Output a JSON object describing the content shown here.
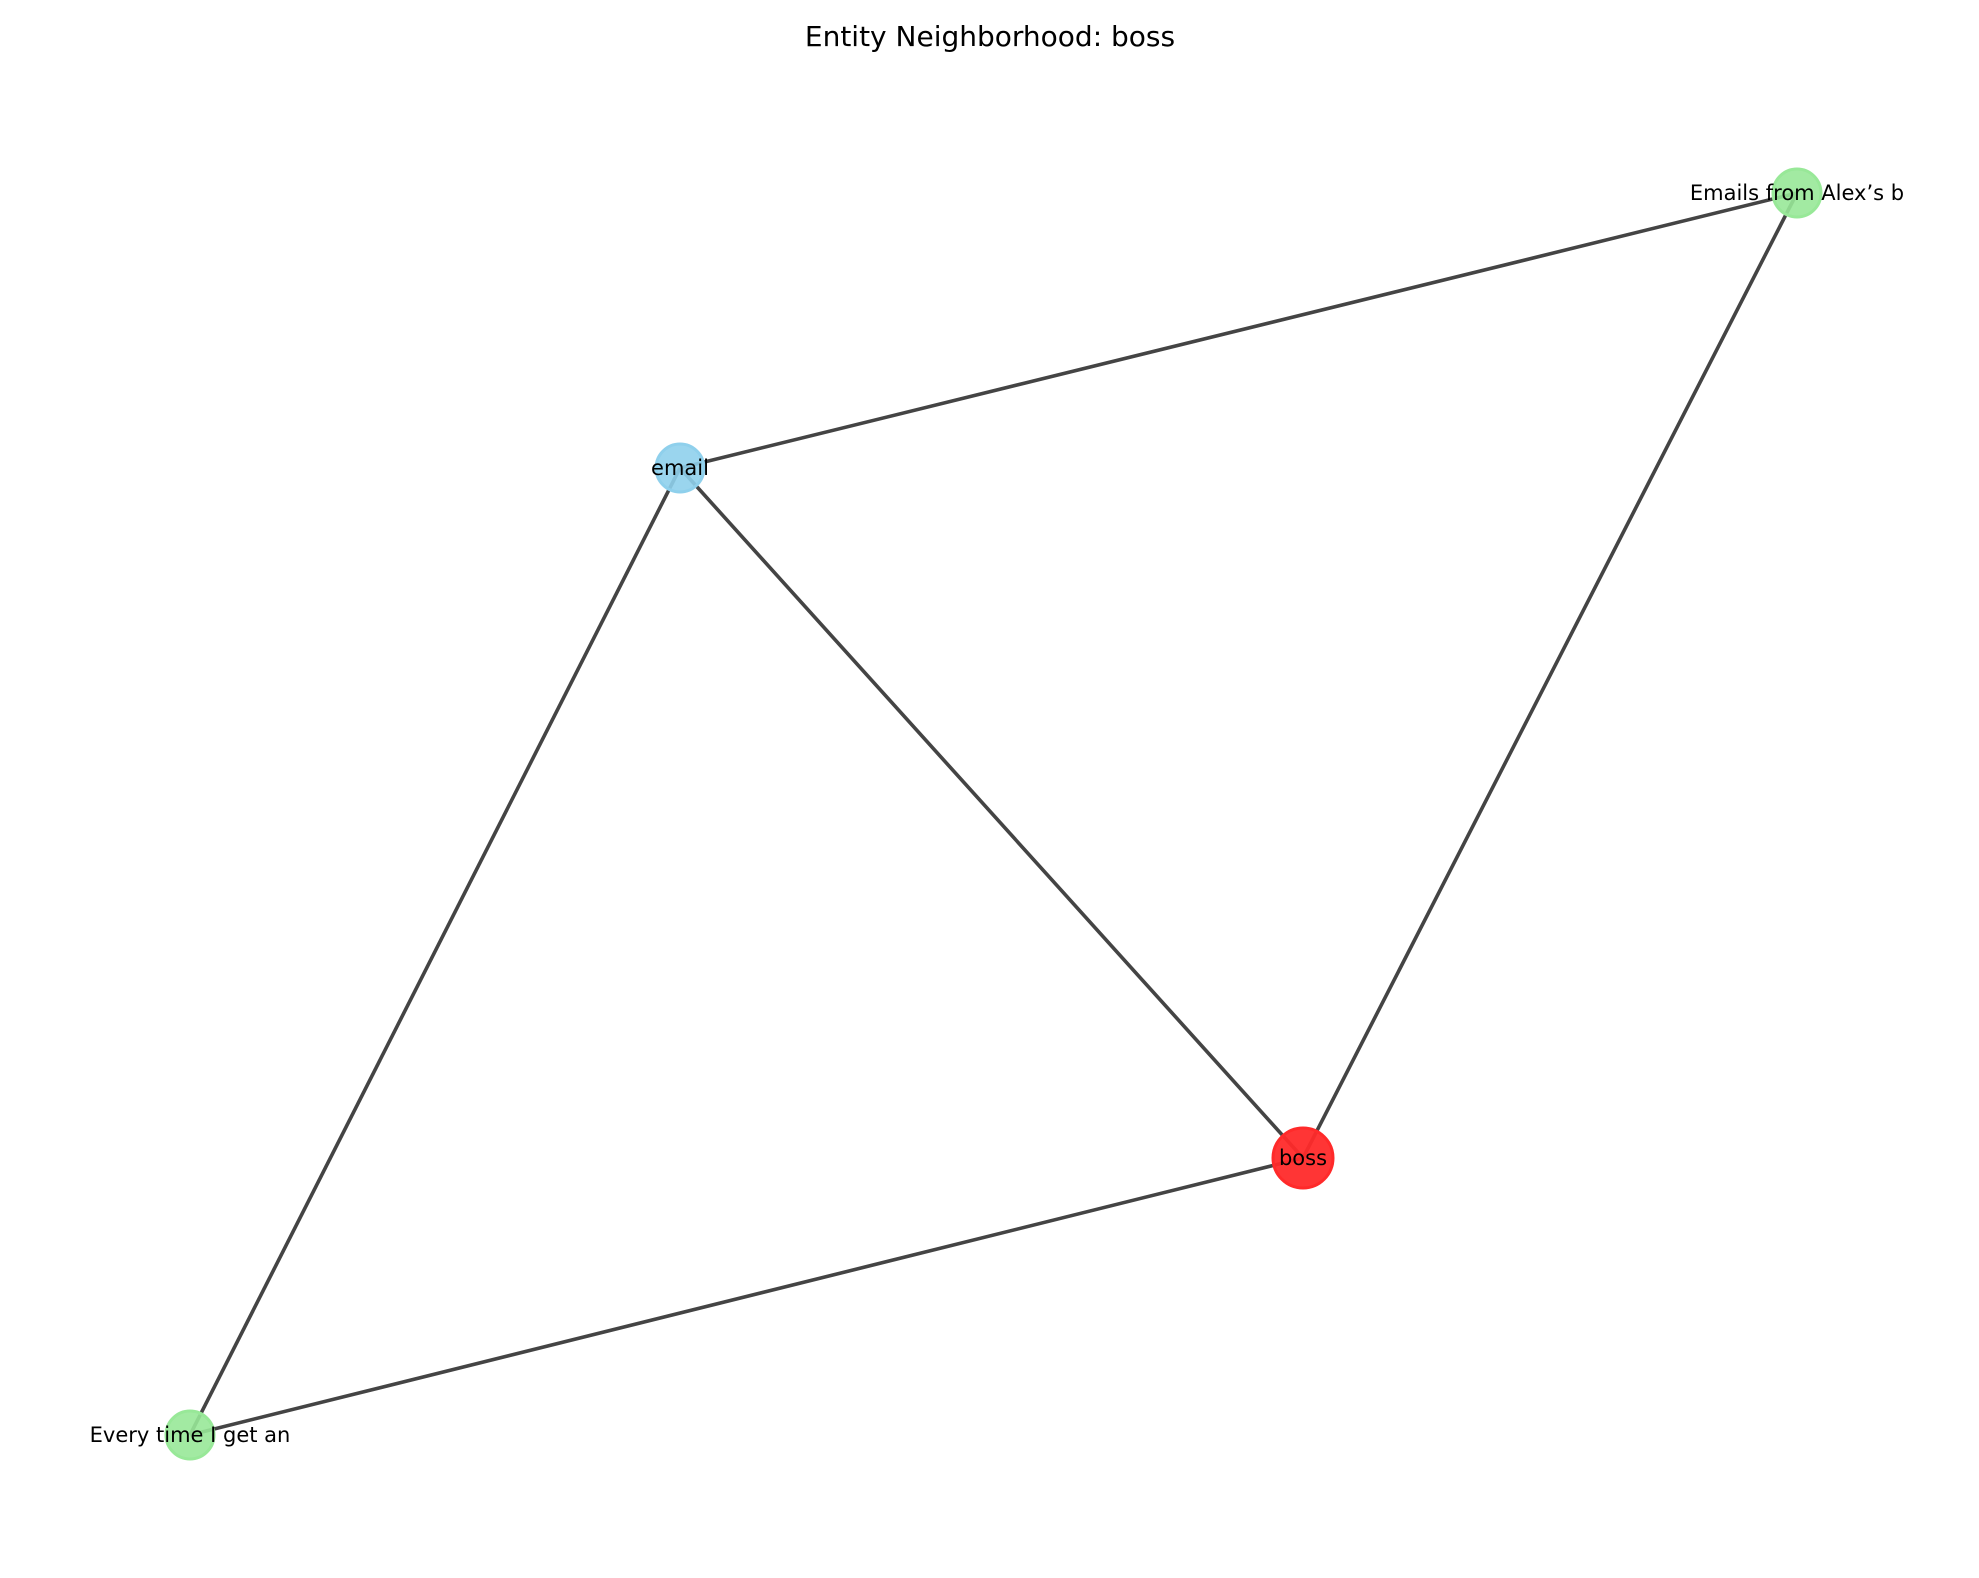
{
  "title": "Entity Neighborhood: boss",
  "colors": {
    "center": "#ff2a2a",
    "entity": "#8fd0ec",
    "memory": "#98e898",
    "edge": "#444444"
  },
  "nodes": [
    {
      "id": "boss",
      "label": "boss",
      "kind": "center"
    },
    {
      "id": "email",
      "label": "email",
      "kind": "entity"
    },
    {
      "id": "mem1",
      "label": "Emails from Alex’s b",
      "kind": "memory"
    },
    {
      "id": "mem2",
      "label": "Every time I get an",
      "kind": "memory"
    }
  ],
  "edges": [
    {
      "source": "email",
      "target": "mem1"
    },
    {
      "source": "email",
      "target": "boss"
    },
    {
      "source": "email",
      "target": "mem2"
    },
    {
      "source": "mem1",
      "target": "boss"
    },
    {
      "source": "boss",
      "target": "mem2"
    }
  ]
}
